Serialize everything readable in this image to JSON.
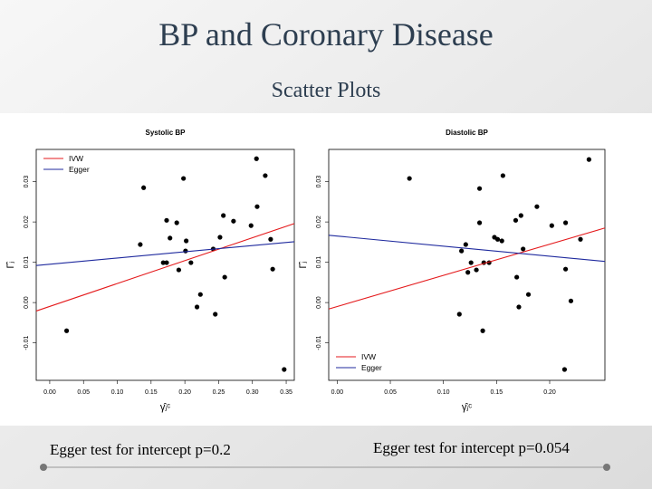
{
  "title": "BP and Coronary Disease",
  "subtitle": "Scatter Plots",
  "captions": [
    "Egger test for intercept p=0.2",
    "Egger test for intercept p=0.054"
  ],
  "chart_data": [
    {
      "type": "scatter",
      "title": "Systolic BP",
      "xlabel": "γ̂ⱼᶜ",
      "ylabel": "Γ̂ⱼ",
      "legend": "top-left",
      "xlim": [
        -0.02,
        0.362
      ],
      "ylim": [
        -0.0193,
        0.038
      ],
      "xticks": [
        {
          "value": 0,
          "label": "0.00"
        },
        0.05,
        {
          "value": 0.1,
          "label": "0.10"
        },
        0.15,
        {
          "value": 0.2,
          "label": "0.20"
        },
        0.25,
        {
          "value": 0.3,
          "label": "0.30"
        },
        0.35
      ],
      "yticks": [
        -0.01,
        {
          "value": 0,
          "label": "0.00"
        },
        0.01,
        0.02,
        0.03
      ],
      "points": {
        "color": "#000000",
        "x": [
          0.025,
          0.139,
          0.134,
          0.173,
          0.188,
          0.198,
          0.178,
          0.168,
          0.173,
          0.201,
          0.202,
          0.209,
          0.191,
          0.223,
          0.218,
          0.245,
          0.242,
          0.252,
          0.257,
          0.272,
          0.259,
          0.298,
          0.307,
          0.306,
          0.319,
          0.327,
          0.33,
          0.347
        ],
        "values": [
          -0.007,
          0.0285,
          0.0144,
          0.0204,
          0.0198,
          0.0308,
          0.016,
          0.0099,
          0.0099,
          0.0128,
          0.0153,
          0.0099,
          0.0081,
          0.002,
          -0.0011,
          -0.0029,
          0.0133,
          0.0162,
          0.0216,
          0.0202,
          0.0063,
          0.0191,
          0.0238,
          0.0357,
          0.0315,
          0.0157,
          0.0083,
          -0.0166
        ]
      },
      "series": [
        {
          "name": "IVW",
          "color": "#e41a1c",
          "x": [
            -0.02,
            0.362
          ],
          "values": [
            -0.0021,
            0.0196
          ]
        },
        {
          "name": "Egger",
          "color": "#1f2a9e",
          "x": [
            -0.02,
            0.362
          ],
          "values": [
            0.0092,
            0.0151
          ]
        }
      ]
    },
    {
      "type": "scatter",
      "title": "Diastolic BP",
      "xlabel": "γ̂ⱼᶜ",
      "ylabel": "Γ̂ⱼ",
      "legend": "bottom-left",
      "xlim": [
        -0.008,
        0.252
      ],
      "ylim": [
        -0.0193,
        0.038
      ],
      "xticks": [
        {
          "value": 0,
          "label": "0.00"
        },
        0.05,
        {
          "value": 0.1,
          "label": "0.10"
        },
        0.15,
        {
          "value": 0.2,
          "label": "0.20"
        }
      ],
      "yticks": [
        -0.01,
        {
          "value": 0,
          "label": "0.00"
        },
        0.01,
        0.02,
        0.03
      ],
      "points": {
        "color": "#000000",
        "x": [
          0.068,
          0.134,
          0.156,
          0.134,
          0.115,
          0.117,
          0.121,
          0.126,
          0.131,
          0.138,
          0.143,
          0.148,
          0.151,
          0.155,
          0.137,
          0.168,
          0.173,
          0.175,
          0.169,
          0.171,
          0.18,
          0.188,
          0.202,
          0.215,
          0.215,
          0.22,
          0.229,
          0.237,
          0.214,
          0.123
        ],
        "values": [
          0.0308,
          0.0283,
          0.0315,
          0.0198,
          -0.0029,
          0.0128,
          0.0144,
          0.0099,
          0.0081,
          0.0099,
          0.0099,
          0.0162,
          0.0157,
          0.0153,
          -0.007,
          0.0204,
          0.0216,
          0.0133,
          0.0063,
          -0.0011,
          0.002,
          0.0238,
          0.0191,
          0.0198,
          0.0083,
          0.0004,
          0.0157,
          0.0355,
          -0.0166,
          0.0075
        ]
      },
      "series": [
        {
          "name": "IVW",
          "color": "#e41a1c",
          "x": [
            -0.008,
            0.252
          ],
          "values": [
            -0.0016,
            0.0185
          ]
        },
        {
          "name": "Egger",
          "color": "#1f2a9e",
          "x": [
            -0.008,
            0.252
          ],
          "values": [
            0.0167,
            0.0102
          ]
        }
      ]
    }
  ]
}
